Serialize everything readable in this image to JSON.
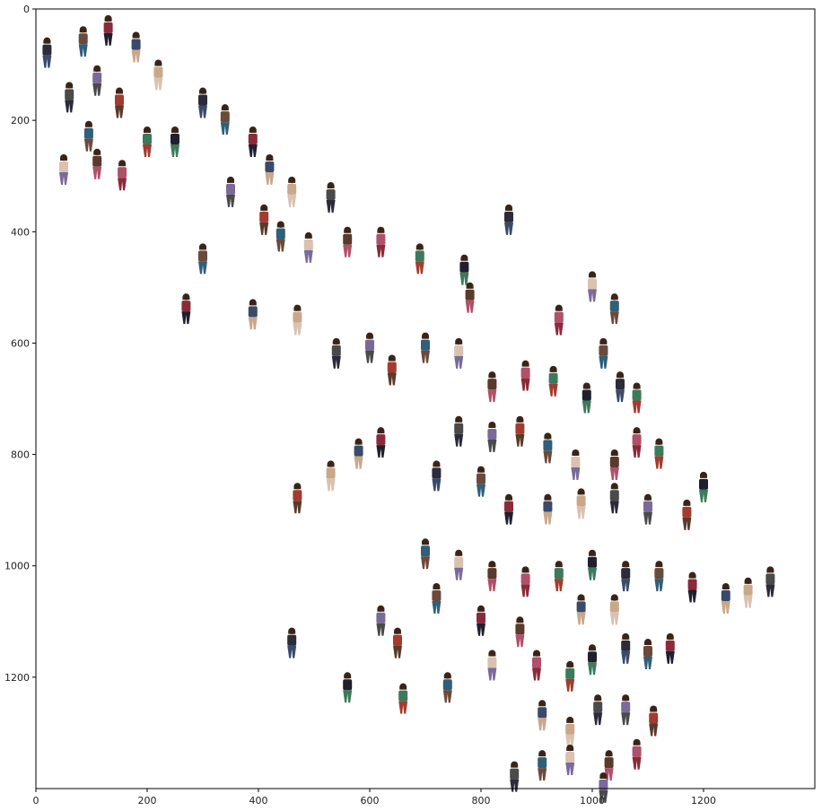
{
  "chart_data": {
    "type": "scatter",
    "title": "",
    "xlabel": "",
    "ylabel": "",
    "xlim": [
      0,
      1400
    ],
    "ylim": [
      1400,
      0
    ],
    "y_inverted": true,
    "grid": false,
    "x_ticks": [
      0,
      200,
      400,
      600,
      800,
      1000,
      1200
    ],
    "y_ticks": [
      0,
      200,
      400,
      600,
      800,
      1000,
      1200
    ],
    "x_tick_labels": [
      "0",
      "200",
      "400",
      "600",
      "800",
      "1000",
      "1200"
    ],
    "y_tick_labels": [
      "0",
      "200",
      "400",
      "600",
      "800",
      "1000",
      "1200"
    ],
    "marker": "fashion-photo-thumbnail",
    "points": [
      [
        20,
        80
      ],
      [
        85,
        60
      ],
      [
        130,
        40
      ],
      [
        180,
        70
      ],
      [
        220,
        120
      ],
      [
        60,
        160
      ],
      [
        110,
        130
      ],
      [
        150,
        170
      ],
      [
        95,
        230
      ],
      [
        50,
        290
      ],
      [
        110,
        280
      ],
      [
        155,
        300
      ],
      [
        200,
        240
      ],
      [
        250,
        240
      ],
      [
        300,
        170
      ],
      [
        340,
        200
      ],
      [
        390,
        240
      ],
      [
        420,
        290
      ],
      [
        460,
        330
      ],
      [
        530,
        340
      ],
      [
        350,
        330
      ],
      [
        410,
        380
      ],
      [
        440,
        410
      ],
      [
        490,
        430
      ],
      [
        560,
        420
      ],
      [
        620,
        420
      ],
      [
        690,
        450
      ],
      [
        770,
        470
      ],
      [
        850,
        380
      ],
      [
        300,
        450
      ],
      [
        270,
        540
      ],
      [
        390,
        550
      ],
      [
        470,
        560
      ],
      [
        540,
        620
      ],
      [
        600,
        610
      ],
      [
        640,
        650
      ],
      [
        700,
        610
      ],
      [
        760,
        620
      ],
      [
        820,
        680
      ],
      [
        880,
        660
      ],
      [
        930,
        670
      ],
      [
        990,
        700
      ],
      [
        1050,
        680
      ],
      [
        1020,
        620
      ],
      [
        620,
        780
      ],
      [
        580,
        800
      ],
      [
        530,
        840
      ],
      [
        760,
        760
      ],
      [
        820,
        770
      ],
      [
        870,
        760
      ],
      [
        920,
        790
      ],
      [
        970,
        820
      ],
      [
        1040,
        820
      ],
      [
        1080,
        780
      ],
      [
        1120,
        800
      ],
      [
        1200,
        860
      ],
      [
        720,
        840
      ],
      [
        800,
        850
      ],
      [
        850,
        900
      ],
      [
        920,
        900
      ],
      [
        980,
        890
      ],
      [
        1040,
        880
      ],
      [
        1100,
        900
      ],
      [
        1170,
        910
      ],
      [
        700,
        980
      ],
      [
        760,
        1000
      ],
      [
        820,
        1020
      ],
      [
        880,
        1030
      ],
      [
        940,
        1020
      ],
      [
        1000,
        1000
      ],
      [
        1060,
        1020
      ],
      [
        1120,
        1020
      ],
      [
        1180,
        1040
      ],
      [
        1240,
        1060
      ],
      [
        1280,
        1050
      ],
      [
        1320,
        1030
      ],
      [
        620,
        1100
      ],
      [
        650,
        1140
      ],
      [
        740,
        1220
      ],
      [
        820,
        1180
      ],
      [
        870,
        1120
      ],
      [
        900,
        1180
      ],
      [
        960,
        1200
      ],
      [
        1000,
        1170
      ],
      [
        1060,
        1150
      ],
      [
        1100,
        1160
      ],
      [
        1140,
        1150
      ],
      [
        910,
        1270
      ],
      [
        960,
        1300
      ],
      [
        1010,
        1260
      ],
      [
        1060,
        1260
      ],
      [
        1110,
        1280
      ],
      [
        910,
        1360
      ],
      [
        960,
        1350
      ],
      [
        1030,
        1360
      ],
      [
        1080,
        1340
      ],
      [
        660,
        1240
      ],
      [
        560,
        1220
      ],
      [
        460,
        1140
      ],
      [
        720,
        1060
      ],
      [
        800,
        1100
      ],
      [
        980,
        1080
      ],
      [
        1040,
        1080
      ],
      [
        860,
        1380
      ],
      [
        1020,
        1400
      ],
      [
        470,
        880
      ],
      [
        1040,
        540
      ],
      [
        1000,
        500
      ],
      [
        780,
        520
      ],
      [
        940,
        560
      ],
      [
        1080,
        700
      ]
    ]
  }
}
